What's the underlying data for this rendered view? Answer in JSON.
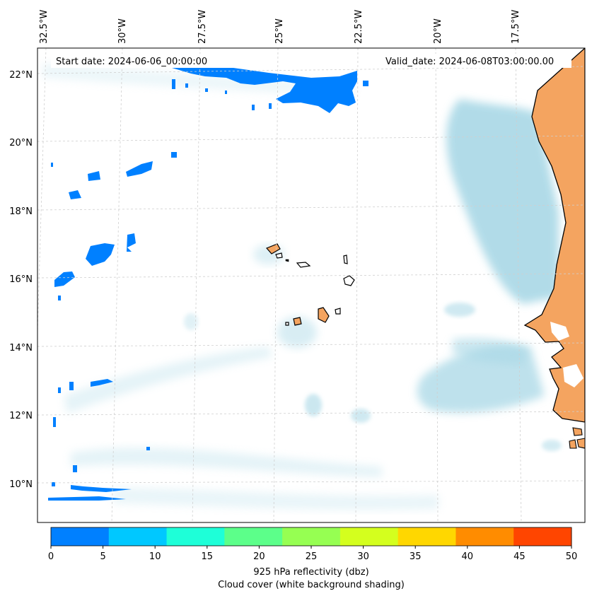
{
  "header": {
    "start_date": "Start date: 2024-06-06_00:00:00",
    "valid_date": "Valid_date: 2024-06-08T03:00:00.00"
  },
  "axes": {
    "lon_labels": [
      "32.5°W",
      "30°W",
      "27.5°W",
      "25°W",
      "22.5°W",
      "20°W",
      "17.5°W"
    ],
    "lat_labels": [
      "22°N",
      "20°N",
      "18°N",
      "16°N",
      "14°N",
      "12°N",
      "10°N"
    ]
  },
  "colorbar": {
    "ticks": [
      "0",
      "5",
      "10",
      "15",
      "20",
      "25",
      "30",
      "35",
      "40",
      "45",
      "50"
    ],
    "colors": [
      "#0080ff",
      "#00c8ff",
      "#1effd8",
      "#5cff8a",
      "#96ff52",
      "#d4ff1e",
      "#ffd700",
      "#ff8c00",
      "#ff4500"
    ],
    "label_line1": "925 hPa reflectivity (dbz)",
    "label_line2": "Cloud cover (white background shading)"
  },
  "colors": {
    "land": "#f4a460",
    "cloud": "#a9d8e6",
    "echo": "#0080ff"
  }
}
